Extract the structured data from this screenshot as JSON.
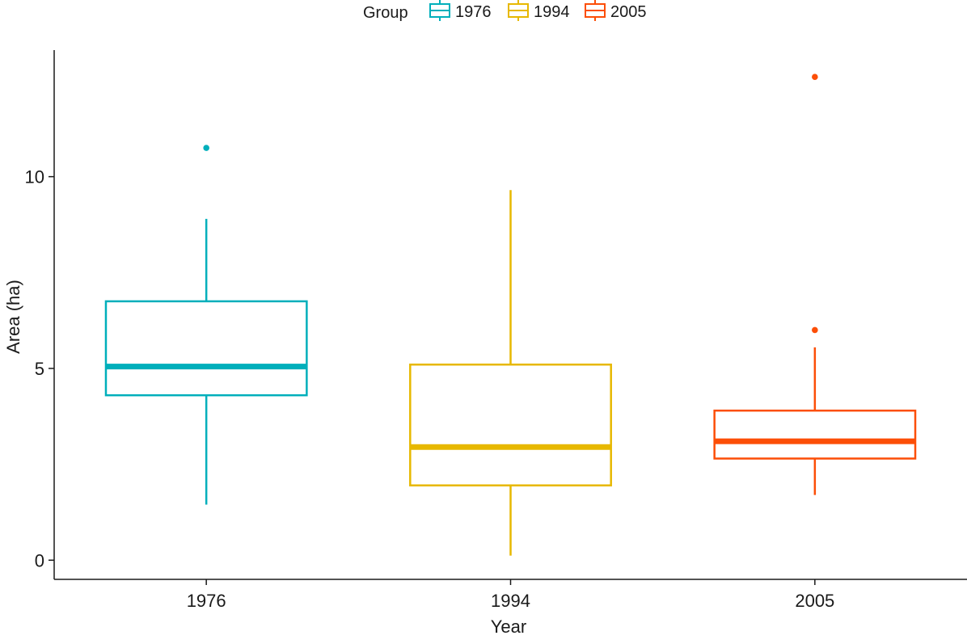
{
  "chart_data": {
    "type": "boxplot",
    "xlabel": "Year",
    "ylabel": "Area (ha)",
    "ylim": [
      -0.5,
      13.3
    ],
    "yticks": [
      0,
      5,
      10
    ],
    "grid": false,
    "legend": {
      "title": "Group",
      "placement": "top",
      "entries": [
        "1976",
        "1994",
        "2005"
      ]
    },
    "categories": [
      "1976",
      "1994",
      "2005"
    ],
    "series": [
      {
        "name": "1976",
        "color": "#00AFBB",
        "min": 1.45,
        "q1": 4.3,
        "median": 5.05,
        "q3": 6.75,
        "max": 8.9,
        "outliers": [
          10.75
        ]
      },
      {
        "name": "1994",
        "color": "#E7B800",
        "min": 0.12,
        "q1": 1.95,
        "median": 2.95,
        "q3": 5.1,
        "max": 9.65,
        "outliers": []
      },
      {
        "name": "2005",
        "color": "#FC4E07",
        "min": 1.7,
        "q1": 2.65,
        "median": 3.1,
        "q3": 3.9,
        "max": 5.55,
        "outliers": [
          6.0,
          12.6
        ]
      }
    ]
  }
}
